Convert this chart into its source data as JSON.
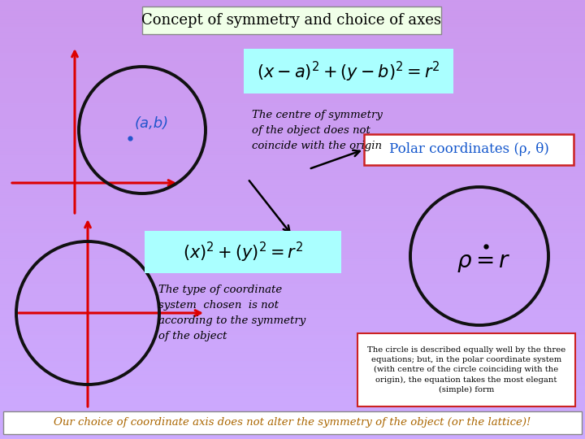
{
  "title": "Concept of symmetry and choice of axes",
  "bg_color": "#CC99EE",
  "title_box_color": "#F0FFE8",
  "title_box_edge": "#888888",
  "eq1_box_color": "#AAFFFF",
  "eq2_box_color": "#AAFFFF",
  "polar_box_color": "#FFFFFF",
  "polar_box_edge": "#CC2222",
  "desc_box_color": "#FFFFFF",
  "desc_box_edge": "#CC2222",
  "bottom_box_color": "#FFFFFF",
  "bottom_box_edge": "#888888",
  "axis_color": "#DD0000",
  "circle_color": "#111111",
  "label_ab_color": "#2255CC",
  "label_ab_text": "(a,b)",
  "polar_title_text": "Polar coordinates (ρ, θ)",
  "desc1_text": "The centre of symmetry\nof the object does not\ncoincide with the origin",
  "desc2_text": "The type of coordinate\nsystem  chosen  is not\naccording to the symmetry\nof the object",
  "desc3_text": "The circle is described equally well by the three\nequations; but, in the polar coordinate system\n(with centre of the circle coinciding with the\norigin), the equation takes the most elegant\n(simple) form",
  "bottom_text": "Our choice of coordinate axis does not alter the symmetry of the object (or the lattice)!"
}
